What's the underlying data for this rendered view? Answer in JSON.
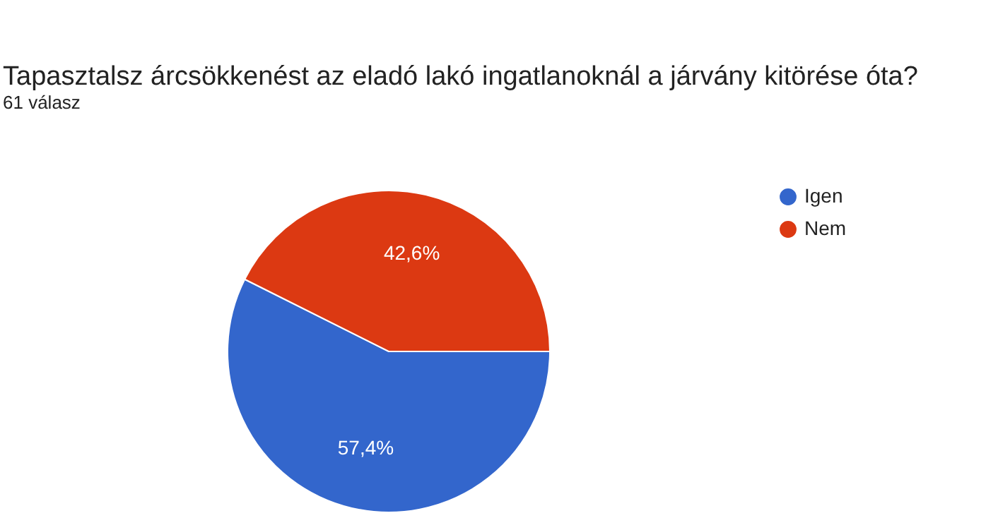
{
  "chart_data": {
    "type": "pie",
    "title": "Tapasztalsz árcsökkenést az eladó lakó ingatlanoknál a járvány kitörése óta?",
    "subtitle": "61 válasz",
    "categories": [
      "Igen",
      "Nem"
    ],
    "values": [
      57.4,
      42.6
    ],
    "colors": [
      "#3366cc",
      "#dc3912"
    ],
    "value_labels": [
      "57,4%",
      "42,6%"
    ],
    "legend": "top right"
  }
}
